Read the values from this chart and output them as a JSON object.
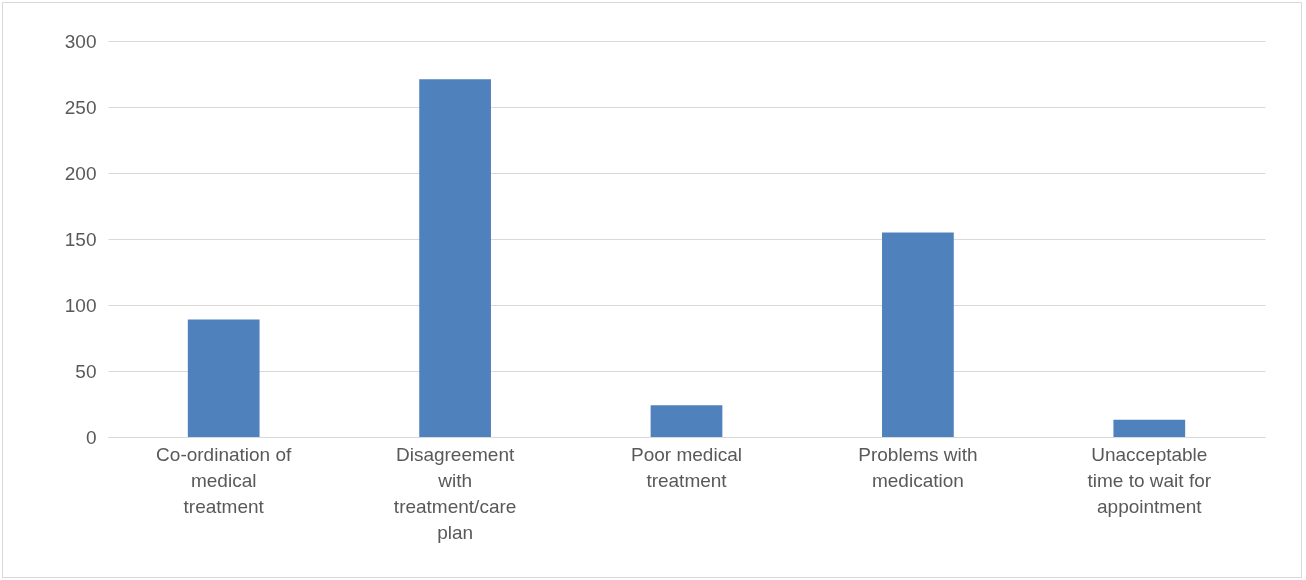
{
  "chart_data": {
    "type": "bar",
    "categories": [
      "Co-ordination of medical treatment",
      "Disagreement with treatment/care plan",
      "Poor medical treatment",
      "Problems with medication",
      "Unacceptable time to wait for appointment"
    ],
    "values": [
      89,
      271,
      24,
      155,
      13
    ],
    "color": "#4f81bd",
    "ylim": [
      0,
      300
    ],
    "yticks": [
      0,
      50,
      100,
      150,
      200,
      250,
      300
    ],
    "grid": "y"
  }
}
